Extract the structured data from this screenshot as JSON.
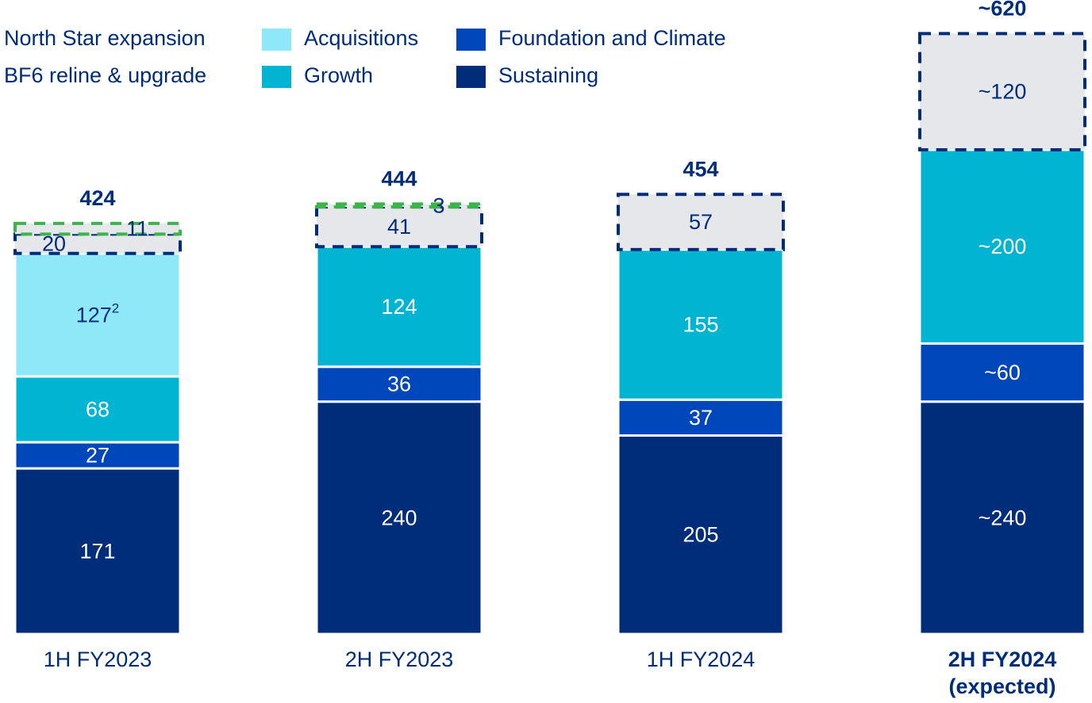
{
  "chart_data": {
    "type": "stacked_bar",
    "categories": [
      "1H FY2023",
      "2H FY2023",
      "1H FY2024",
      "2H FY2024 (expected)"
    ],
    "series": [
      {
        "name": "Sustaining",
        "color": "#002d7a",
        "label_color": "#ffffff",
        "values": [
          171,
          240,
          205,
          240
        ],
        "value_labels": [
          "171",
          "240",
          "205",
          "~240"
        ]
      },
      {
        "name": "Foundation and Climate",
        "color": "#0047bb",
        "label_color": "#ffffff",
        "values": [
          27,
          36,
          37,
          60
        ],
        "value_labels": [
          "27",
          "36",
          "37",
          "~60"
        ]
      },
      {
        "name": "Growth",
        "color": "#00b4d2",
        "label_color": "#ffffff",
        "values": [
          68,
          124,
          155,
          200
        ],
        "value_labels": [
          "68",
          "124",
          "155",
          "~200"
        ]
      },
      {
        "name": "Acquisitions",
        "color": "#8fe8f8",
        "label_color": "#002d7a",
        "values": [
          127,
          null,
          null,
          null
        ],
        "value_superscripts": [
          "2",
          null,
          null,
          null
        ]
      },
      {
        "name": "BF6 reline & upgrade",
        "color": "#e6e7eb",
        "border": "#002d7a",
        "label_color": "#002d7a",
        "values": [
          20,
          41,
          57,
          120
        ],
        "value_labels": [
          "20",
          "41",
          "57",
          "~120"
        ]
      },
      {
        "name": "North Star expansion",
        "color": "#e6e7eb",
        "border": "#3cb44b",
        "label_color": "#002d7a",
        "values": [
          11,
          3,
          null,
          null
        ]
      }
    ],
    "totals": [
      424,
      444,
      454,
      620
    ],
    "total_labels": [
      "424",
      "444",
      "454",
      "~620"
    ]
  }
}
